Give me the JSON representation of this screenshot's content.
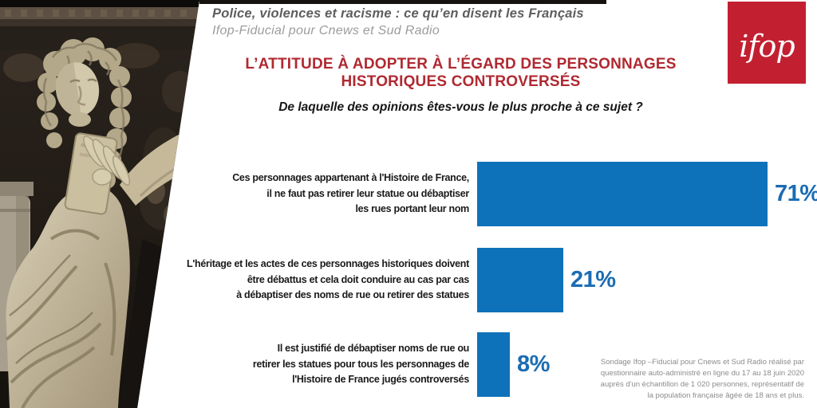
{
  "header": {
    "title": "Police, violences et racisme : ce qu’en disent les Français",
    "subtitle": "Ifop-Fiducial pour Cnews et Sud Radio"
  },
  "logo": {
    "text": "ifop",
    "color": "#c22030"
  },
  "chart_data": {
    "type": "bar",
    "orientation": "horizontal",
    "title": "L’ATTITUDE À ADOPTER À L’ÉGARD DES PERSONNAGES\nHISTORIQUES CONTROVERSÉS",
    "title_color": "#b02931",
    "question": "De laquelle des opinions êtes-vous le plus proche à ce sujet ?",
    "categories": [
      "Ces personnages appartenant à l'Histoire de France,\nil ne faut pas retirer leur statue ou débaptiser\nles rues portant leur nom",
      "L'héritage et les actes de ces personnages historiques doivent\nêtre débattus et cela doit conduire au cas par cas\nà débaptiser des noms de rue ou retirer des statues",
      "Il est justifié de débaptiser noms de rue ou\nretirer les statues pour tous les personnages de\nl'Histoire de France jugés controversés"
    ],
    "values": [
      71,
      21,
      8
    ],
    "value_labels": [
      "71%",
      "21%",
      "8%"
    ],
    "unit": "%",
    "xlim": [
      0,
      100
    ],
    "bar_color": "#0e72ba",
    "value_label_color": "#1a6cb3",
    "grid": false,
    "legend": false
  },
  "footnote": "Sondage Ifop –Fiducial pour Cnews et Sud Radio réalisé par\nquestionnaire auto-administré en ligne du 17 au 18 juin 2020\nauprès d'un échantillon de 1 020 personnes, représentatif de\nla population française âgée de 18 ans et plus."
}
